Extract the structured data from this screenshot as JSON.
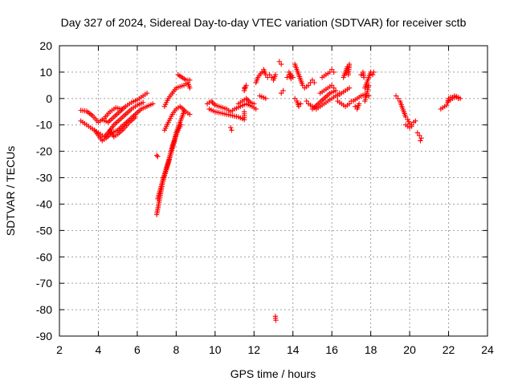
{
  "chart_data": {
    "type": "scatter",
    "title": "Day 327 of 2024, Sidereal Day-to-day VTEC variation (SDTVAR) for receiver sctb",
    "xlabel": "GPS time / hours",
    "ylabel": "SDTVAR / TECUs",
    "xlim": [
      2,
      24
    ],
    "ylim": [
      -90,
      20
    ],
    "xticks": [
      "2",
      "4",
      "6",
      "8",
      "10",
      "12",
      "14",
      "16",
      "18",
      "20",
      "22",
      "24"
    ],
    "yticks": [
      "20",
      "10",
      "0",
      "-10",
      "-20",
      "-30",
      "-40",
      "-50",
      "-60",
      "-70",
      "-80",
      "-90"
    ],
    "grid": true,
    "marker": "plus",
    "series_color": "#ff0000",
    "segments": [
      {
        "name": "arc-a1",
        "points": [
          [
            3.1,
            -4.5
          ],
          [
            3.4,
            -4.8
          ],
          [
            3.7,
            -6.5
          ],
          [
            4.0,
            -9.0
          ],
          [
            4.3,
            -7.5
          ],
          [
            4.6,
            -5.0
          ],
          [
            4.9,
            -3.5
          ],
          [
            5.2,
            -4.0
          ]
        ]
      },
      {
        "name": "arc-a2",
        "points": [
          [
            3.1,
            -8.5
          ],
          [
            3.4,
            -10.0
          ],
          [
            3.7,
            -11.5
          ],
          [
            4.0,
            -13.0
          ],
          [
            4.3,
            -14.5
          ],
          [
            4.5,
            -13.0
          ],
          [
            4.8,
            -10.0
          ],
          [
            5.1,
            -8.0
          ],
          [
            5.4,
            -6.0
          ],
          [
            5.7,
            -4.0
          ],
          [
            6.0,
            -2.5
          ],
          [
            6.3,
            -1.5
          ]
        ]
      },
      {
        "name": "arc-a3",
        "points": [
          [
            3.8,
            -12.0
          ],
          [
            4.0,
            -14.0
          ],
          [
            4.2,
            -16.0
          ],
          [
            4.4,
            -15.0
          ],
          [
            4.7,
            -13.0
          ],
          [
            5.0,
            -12.0
          ],
          [
            5.3,
            -10.0
          ],
          [
            5.6,
            -8.0
          ],
          [
            5.9,
            -6.0
          ],
          [
            6.2,
            -4.0
          ],
          [
            6.5,
            -3.0
          ],
          [
            6.8,
            -2.0
          ]
        ]
      },
      {
        "name": "arc-a4",
        "points": [
          [
            4.2,
            -8.0
          ],
          [
            4.5,
            -9.0
          ],
          [
            4.8,
            -7.0
          ],
          [
            5.1,
            -5.0
          ],
          [
            5.4,
            -3.0
          ],
          [
            5.7,
            -1.5
          ],
          [
            6.0,
            -0.5
          ],
          [
            6.3,
            1.0
          ],
          [
            6.5,
            2.0
          ]
        ]
      },
      {
        "name": "arc-a5",
        "points": [
          [
            4.6,
            -12.0
          ],
          [
            4.8,
            -14.5
          ],
          [
            5.0,
            -13.5
          ],
          [
            5.3,
            -11.5
          ],
          [
            5.6,
            -9.0
          ],
          [
            5.9,
            -7.0
          ]
        ]
      },
      {
        "name": "arc-b1",
        "points": [
          [
            7.0,
            -44.0
          ],
          [
            7.1,
            -40.0
          ],
          [
            7.2,
            -36.0
          ],
          [
            7.3,
            -32.0
          ],
          [
            7.4,
            -29.0
          ],
          [
            7.5,
            -26.0
          ],
          [
            7.6,
            -24.0
          ],
          [
            7.7,
            -21.0
          ],
          [
            7.8,
            -18.0
          ],
          [
            7.9,
            -16.0
          ],
          [
            8.0,
            -13.0
          ],
          [
            8.1,
            -11.0
          ],
          [
            8.2,
            -9.0
          ],
          [
            8.3,
            -7.0
          ],
          [
            8.4,
            -5.0
          ]
        ]
      },
      {
        "name": "arc-b2",
        "points": [
          [
            7.05,
            -38.0
          ],
          [
            7.2,
            -34.0
          ],
          [
            7.35,
            -30.0
          ],
          [
            7.5,
            -27.0
          ],
          [
            7.65,
            -23.0
          ],
          [
            7.8,
            -19.0
          ],
          [
            7.95,
            -15.0
          ],
          [
            8.1,
            -12.0
          ],
          [
            8.25,
            -10.0
          ]
        ]
      },
      {
        "name": "arc-b3",
        "points": [
          [
            7.0,
            -21.5
          ],
          [
            7.05,
            -22.0
          ]
        ]
      },
      {
        "name": "arc-b4",
        "points": [
          [
            7.4,
            -12.0
          ],
          [
            7.6,
            -9.0
          ],
          [
            7.8,
            -6.0
          ],
          [
            8.0,
            -4.0
          ],
          [
            8.2,
            -3.0
          ],
          [
            8.5,
            -5.0
          ],
          [
            8.7,
            -6.0
          ]
        ]
      },
      {
        "name": "arc-b5",
        "points": [
          [
            7.4,
            -3.0
          ],
          [
            7.6,
            0.0
          ],
          [
            7.8,
            2.0
          ],
          [
            8.0,
            4.0
          ],
          [
            8.2,
            4.5
          ],
          [
            8.4,
            5.0
          ],
          [
            8.6,
            6.0
          ],
          [
            8.7,
            4.0
          ]
        ]
      },
      {
        "name": "arc-b6",
        "points": [
          [
            8.1,
            9.0
          ],
          [
            8.5,
            7.0
          ],
          [
            8.7,
            7.0
          ]
        ]
      },
      {
        "name": "arc-c1",
        "points": [
          [
            9.6,
            -2.0
          ],
          [
            9.8,
            -1.0
          ],
          [
            10.0,
            -2.5
          ],
          [
            10.2,
            -3.0
          ],
          [
            10.4,
            -3.5
          ],
          [
            10.6,
            -4.0
          ],
          [
            10.8,
            -5.0
          ],
          [
            11.0,
            -4.0
          ],
          [
            11.3,
            -3.0
          ],
          [
            11.6,
            -2.0
          ],
          [
            11.9,
            -3.0
          ],
          [
            12.1,
            -4.0
          ]
        ]
      },
      {
        "name": "arc-c2",
        "points": [
          [
            9.7,
            -4.0
          ],
          [
            10.0,
            -5.0
          ],
          [
            10.3,
            -5.5
          ],
          [
            10.6,
            -6.0
          ],
          [
            10.9,
            -6.5
          ],
          [
            11.2,
            -7.0
          ],
          [
            11.5,
            -8.0
          ],
          [
            11.5,
            -5.0
          ]
        ]
      },
      {
        "name": "arc-c3",
        "points": [
          [
            10.8,
            -11.0
          ],
          [
            10.85,
            -12.0
          ]
        ]
      },
      {
        "name": "arc-c4",
        "points": [
          [
            11.2,
            -2.0
          ],
          [
            11.4,
            -1.0
          ],
          [
            11.6,
            0.0
          ],
          [
            11.8,
            -1.5
          ],
          [
            12.0,
            -2.0
          ]
        ]
      },
      {
        "name": "arc-c5",
        "points": [
          [
            11.5,
            3.0
          ],
          [
            11.6,
            5.0
          ],
          [
            11.5,
            4.0
          ]
        ]
      },
      {
        "name": "arc-d1",
        "points": [
          [
            12.1,
            6.0
          ],
          [
            12.2,
            8.0
          ],
          [
            12.4,
            10.0
          ],
          [
            12.5,
            11.0
          ],
          [
            12.6,
            9.0
          ],
          [
            12.7,
            8.0
          ],
          [
            12.8,
            9.0
          ],
          [
            12.9,
            8.0
          ],
          [
            13.0,
            7.0
          ],
          [
            13.1,
            9.0
          ]
        ]
      },
      {
        "name": "arc-d2",
        "points": [
          [
            12.3,
            1.0
          ],
          [
            12.6,
            0.0
          ]
        ]
      },
      {
        "name": "arc-d3",
        "points": [
          [
            13.1,
            -82.5
          ],
          [
            13.12,
            -84.0
          ]
        ]
      },
      {
        "name": "arc-d4",
        "points": [
          [
            13.3,
            14.0
          ],
          [
            13.4,
            13.0
          ]
        ]
      },
      {
        "name": "arc-d5",
        "points": [
          [
            13.4,
            2.0
          ],
          [
            13.5,
            3.0
          ]
        ]
      },
      {
        "name": "arc-d6",
        "points": [
          [
            13.7,
            8.0
          ],
          [
            13.8,
            9.0
          ],
          [
            13.9,
            7.5
          ],
          [
            14.0,
            8.0
          ],
          [
            13.8,
            10.0
          ]
        ]
      },
      {
        "name": "arc-e1",
        "points": [
          [
            14.1,
            13.0
          ],
          [
            14.2,
            11.0
          ],
          [
            14.3,
            9.0
          ],
          [
            14.4,
            7.0
          ],
          [
            14.5,
            5.0
          ],
          [
            14.6,
            4.0
          ],
          [
            14.8,
            5.0
          ],
          [
            14.9,
            6.0
          ],
          [
            15.0,
            7.0
          ],
          [
            15.1,
            6.0
          ]
        ]
      },
      {
        "name": "arc-e2",
        "points": [
          [
            14.1,
            0.0
          ],
          [
            14.2,
            -1.0
          ],
          [
            14.3,
            -3.0
          ],
          [
            14.4,
            -2.0
          ]
        ]
      },
      {
        "name": "arc-e3",
        "points": [
          [
            14.7,
            -1.0
          ],
          [
            14.8,
            -2.0
          ],
          [
            15.0,
            -3.0
          ],
          [
            15.2,
            -4.0
          ],
          [
            15.4,
            -3.0
          ],
          [
            15.6,
            -2.0
          ],
          [
            15.8,
            -1.0
          ],
          [
            16.0,
            0.0
          ],
          [
            16.2,
            1.0
          ],
          [
            16.4,
            2.0
          ]
        ]
      },
      {
        "name": "arc-e4",
        "points": [
          [
            15.4,
            2.0
          ],
          [
            15.6,
            3.0
          ],
          [
            15.8,
            4.0
          ],
          [
            16.0,
            5.0
          ],
          [
            16.1,
            4.0
          ]
        ]
      },
      {
        "name": "arc-e5",
        "points": [
          [
            15.5,
            8.0
          ],
          [
            15.7,
            9.0
          ],
          [
            15.9,
            10.0
          ],
          [
            16.0,
            11.0
          ],
          [
            16.1,
            10.0
          ]
        ]
      },
      {
        "name": "arc-e6",
        "points": [
          [
            15.0,
            -4.0
          ],
          [
            15.3,
            -2.0
          ],
          [
            15.6,
            0.0
          ],
          [
            15.9,
            2.0
          ],
          [
            16.2,
            3.0
          ]
        ]
      },
      {
        "name": "arc-f1",
        "points": [
          [
            16.3,
            1.0
          ],
          [
            16.5,
            2.0
          ],
          [
            16.7,
            3.0
          ],
          [
            16.9,
            4.0
          ]
        ]
      },
      {
        "name": "arc-f2",
        "points": [
          [
            16.3,
            -1.0
          ],
          [
            16.5,
            -2.0
          ],
          [
            16.7,
            -3.0
          ],
          [
            16.9,
            -2.0
          ],
          [
            17.0,
            -1.0
          ]
        ]
      },
      {
        "name": "arc-f3",
        "points": [
          [
            16.6,
            8.0
          ],
          [
            16.7,
            10.0
          ],
          [
            16.8,
            12.0
          ],
          [
            16.9,
            13.0
          ],
          [
            16.85,
            9.0
          ]
        ]
      },
      {
        "name": "arc-f4",
        "points": [
          [
            17.1,
            -1.0
          ],
          [
            17.3,
            0.0
          ],
          [
            17.5,
            1.0
          ],
          [
            17.7,
            1.5
          ],
          [
            17.9,
            1.0
          ]
        ]
      },
      {
        "name": "arc-f5",
        "points": [
          [
            17.2,
            -3.0
          ],
          [
            17.3,
            -4.0
          ],
          [
            17.4,
            -2.0
          ]
        ]
      },
      {
        "name": "arc-f6",
        "points": [
          [
            17.5,
            9.0
          ],
          [
            17.6,
            10.0
          ],
          [
            17.65,
            8.0
          ]
        ]
      },
      {
        "name": "arc-f7",
        "points": [
          [
            17.7,
            4.0
          ],
          [
            17.8,
            6.0
          ],
          [
            17.9,
            8.0
          ],
          [
            18.0,
            10.0
          ],
          [
            18.1,
            9.0
          ],
          [
            18.15,
            10.0
          ]
        ]
      },
      {
        "name": "arc-f8",
        "points": [
          [
            17.7,
            -1.0
          ],
          [
            17.8,
            2.0
          ],
          [
            17.9,
            5.0
          ]
        ]
      },
      {
        "name": "arc-g1",
        "points": [
          [
            19.3,
            1.0
          ],
          [
            19.4,
            0.0
          ],
          [
            19.5,
            -1.0
          ],
          [
            19.6,
            -3.0
          ],
          [
            19.7,
            -5.0
          ],
          [
            19.8,
            -7.0
          ],
          [
            19.9,
            -8.0
          ],
          [
            20.0,
            -9.5
          ],
          [
            20.1,
            -10.0
          ],
          [
            20.2,
            -9.0
          ],
          [
            20.3,
            -8.5
          ]
        ]
      },
      {
        "name": "arc-g2",
        "points": [
          [
            19.8,
            -10.0
          ],
          [
            20.0,
            -11.0
          ],
          [
            20.1,
            -10.5
          ]
        ]
      },
      {
        "name": "arc-g3",
        "points": [
          [
            20.4,
            -13.0
          ],
          [
            20.5,
            -14.0
          ],
          [
            20.6,
            -15.0
          ],
          [
            20.55,
            -16.0
          ]
        ]
      },
      {
        "name": "arc-h1",
        "points": [
          [
            21.6,
            -4.0
          ],
          [
            21.7,
            -3.5
          ],
          [
            21.8,
            -3.0
          ],
          [
            21.9,
            -2.5
          ],
          [
            21.95,
            -1.5
          ],
          [
            22.0,
            0.0
          ],
          [
            22.1,
            0.5
          ],
          [
            22.2,
            0.5
          ],
          [
            22.3,
            1.0
          ],
          [
            22.4,
            0.5
          ],
          [
            22.5,
            0.0
          ]
        ]
      },
      {
        "name": "arc-h2",
        "points": [
          [
            22.0,
            -1.0
          ],
          [
            22.2,
            0.0
          ],
          [
            22.4,
            0.8
          ],
          [
            22.6,
            0.0
          ]
        ]
      }
    ]
  }
}
